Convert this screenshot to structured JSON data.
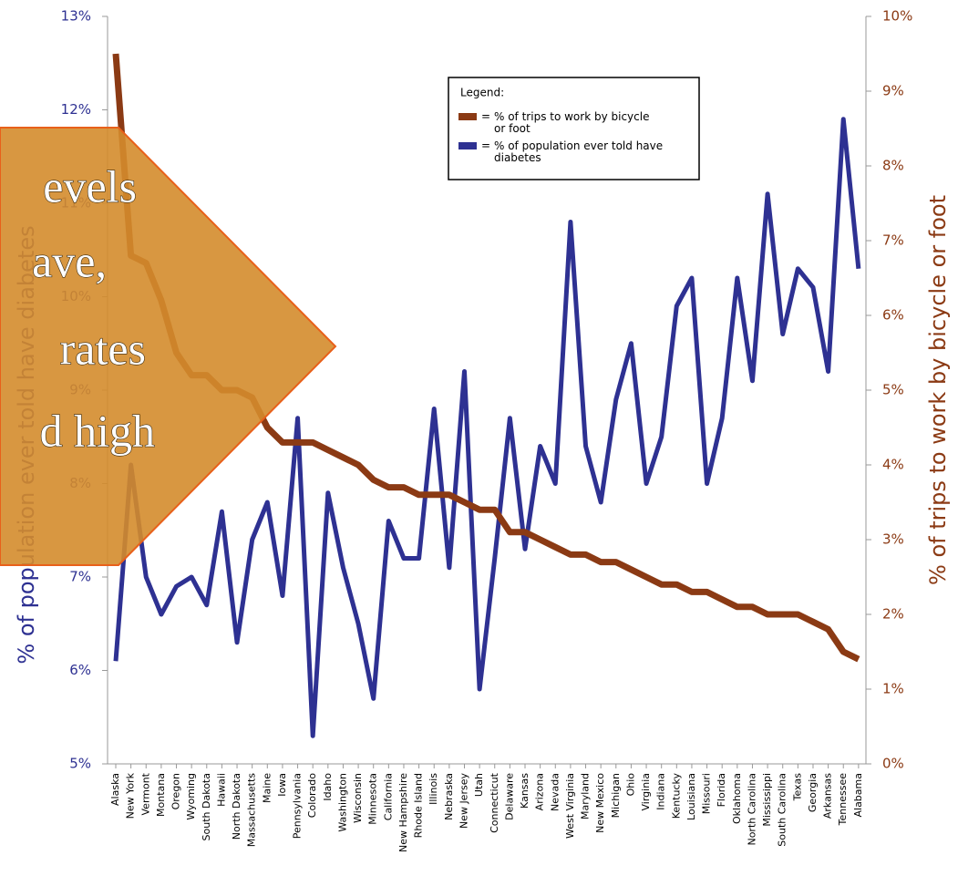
{
  "chart_data": {
    "type": "line",
    "y_label": "% of population ever told have diabetes",
    "y2_label": "% of trips to work by bicycle or foot",
    "legend_title": "Legend:",
    "legend_separator": "=",
    "categories": [
      "Alaska",
      "New York",
      "Vermont",
      "Montana",
      "Oregon",
      "Wyoming",
      "South Dakota",
      "Hawaii",
      "North Dakota",
      "Massachusetts",
      "Maine",
      "Iowa",
      "Pennsylvania",
      "Colorado",
      "Idaho",
      "Washington",
      "Wisconsin",
      "Minnesota",
      "California",
      "New Hampshire",
      "Rhode Island",
      "Illinois",
      "Nebraska",
      "New Jersey",
      "Utah",
      "Connecticut",
      "Delaware",
      "Kansas",
      "Arizona",
      "Nevada",
      "West Virginia",
      "Maryland",
      "New Mexico",
      "Michigan",
      "Ohio",
      "Virginia",
      "Indiana",
      "Kentucky",
      "Louisiana",
      "Missouri",
      "Florida",
      "Oklahoma",
      "North Carolina",
      "Mississippi",
      "South Carolina",
      "Texas",
      "Georgia",
      "Arkansas",
      "Tennessee",
      "Alabama"
    ],
    "series": [
      {
        "name": "% of trips to work by bicycle or foot",
        "color": "#8b3a14",
        "axis": "y2",
        "values": [
          9.5,
          6.8,
          6.7,
          6.2,
          5.5,
          5.2,
          5.2,
          5.0,
          5.0,
          4.9,
          4.5,
          4.3,
          4.3,
          4.3,
          4.2,
          4.1,
          4.0,
          3.8,
          3.7,
          3.7,
          3.6,
          3.6,
          3.6,
          3.5,
          3.4,
          3.4,
          3.1,
          3.1,
          3.0,
          2.9,
          2.8,
          2.8,
          2.7,
          2.7,
          2.6,
          2.5,
          2.4,
          2.4,
          2.3,
          2.3,
          2.2,
          2.1,
          2.1,
          2.0,
          2.0,
          2.0,
          1.9,
          1.8,
          1.5,
          1.4
        ]
      },
      {
        "name": "% of population ever told have diabetes",
        "color": "#2e3192",
        "values": [
          6.1,
          8.2,
          7.0,
          6.6,
          6.9,
          7.0,
          6.7,
          7.7,
          6.3,
          7.4,
          7.8,
          6.8,
          8.7,
          5.3,
          7.9,
          7.1,
          6.5,
          5.7,
          7.6,
          7.2,
          7.2,
          8.8,
          7.1,
          9.2,
          5.8,
          7.2,
          8.7,
          7.3,
          8.4,
          8.0,
          10.8,
          8.4,
          7.8,
          8.9,
          9.5,
          8.0,
          8.5,
          9.9,
          10.2,
          8.0,
          8.7,
          10.2,
          9.1,
          11.1,
          9.6,
          10.3,
          10.1,
          9.2,
          11.9,
          10.3
        ]
      }
    ],
    "ylim": [
      5,
      13
    ],
    "yticks": [
      {
        "value": 5,
        "label": "5%"
      },
      {
        "value": 6,
        "label": "6%"
      },
      {
        "value": 7,
        "label": "7%"
      },
      {
        "value": 8,
        "label": "8%"
      },
      {
        "value": 9,
        "label": "9%"
      },
      {
        "value": 10,
        "label": "10%"
      },
      {
        "value": 11,
        "label": "11%"
      },
      {
        "value": 12,
        "label": "12%"
      },
      {
        "value": 13,
        "label": "13%"
      }
    ],
    "y2lim": [
      0,
      10
    ],
    "y2ticks": [
      {
        "value": 0,
        "label": "0%"
      },
      {
        "value": 1,
        "label": "1%"
      },
      {
        "value": 2,
        "label": "2%"
      },
      {
        "value": 3,
        "label": "3%"
      },
      {
        "value": 4,
        "label": "4%"
      },
      {
        "value": 5,
        "label": "5%"
      },
      {
        "value": 6,
        "label": "6%"
      },
      {
        "value": 7,
        "label": "7%"
      },
      {
        "value": 8,
        "label": "8%"
      },
      {
        "value": 9,
        "label": "9%"
      },
      {
        "value": 10,
        "label": "10%"
      }
    ]
  },
  "overlay": {
    "lines": [
      "evels",
      "ave,",
      "rates",
      "d high"
    ]
  }
}
